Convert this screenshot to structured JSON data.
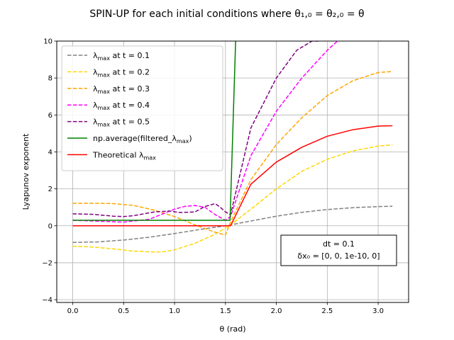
{
  "chart_data": {
    "type": "line",
    "title": "SPIN-UP for each initial conditions where θ₁,₀ = θ₂,₀ = θ",
    "xlabel": "θ (rad)",
    "ylabel": "Lyapunov exponent",
    "xlim": [
      -0.157,
      3.299
    ],
    "ylim": [
      -4.15,
      10
    ],
    "xticks": [
      0.0,
      0.5,
      1.0,
      1.5,
      2.0,
      2.5,
      3.0
    ],
    "xtick_labels": [
      "0.0",
      "0.5",
      "1.0",
      "1.5",
      "2.0",
      "2.5",
      "3.0"
    ],
    "yticks": [
      -4,
      -2,
      0,
      2,
      4,
      6,
      8,
      10
    ],
    "ytick_labels": [
      "−4",
      "−2",
      "0",
      "2",
      "4",
      "6",
      "8",
      "10"
    ],
    "grid": true,
    "legend_position": "upper-left",
    "annotation": {
      "line1": "dt = 0.1",
      "line2": "δx₀ = [0, 0, 1e-10, 0]"
    },
    "series": [
      {
        "name": "λmax at t = 0.1",
        "color": "#808080",
        "dash": "dashed",
        "x": [
          0.0,
          0.25,
          0.5,
          0.75,
          1.0,
          1.25,
          1.5,
          1.75,
          2.0,
          2.25,
          2.5,
          2.75,
          3.0,
          3.14
        ],
        "y": [
          -0.9,
          -0.87,
          -0.77,
          -0.62,
          -0.42,
          -0.2,
          0.0,
          0.26,
          0.52,
          0.73,
          0.88,
          0.98,
          1.04,
          1.06
        ]
      },
      {
        "name": "λmax at t = 0.2",
        "color": "#ffd700",
        "dash": "dashed",
        "x": [
          0.0,
          0.2,
          0.4,
          0.6,
          0.8,
          0.9,
          1.0,
          1.2,
          1.4,
          1.55,
          1.75,
          2.0,
          2.25,
          2.5,
          2.75,
          3.0,
          3.14
        ],
        "y": [
          -1.1,
          -1.15,
          -1.25,
          -1.37,
          -1.42,
          -1.4,
          -1.3,
          -0.95,
          -0.45,
          0.05,
          0.9,
          2.0,
          2.95,
          3.6,
          4.05,
          4.32,
          4.38
        ]
      },
      {
        "name": "λmax at t = 0.3",
        "color": "#ffa500",
        "dash": "dashed",
        "x": [
          0.0,
          0.2,
          0.4,
          0.6,
          0.8,
          1.0,
          1.2,
          1.4,
          1.5,
          1.55,
          1.75,
          2.0,
          2.25,
          2.5,
          2.75,
          3.0,
          3.14
        ],
        "y": [
          1.22,
          1.22,
          1.2,
          1.1,
          0.85,
          0.5,
          0.05,
          -0.35,
          -0.5,
          0.2,
          2.5,
          4.4,
          5.85,
          7.05,
          7.85,
          8.3,
          8.35
        ]
      },
      {
        "name": "λmax at t = 0.4",
        "color": "#ff00ff",
        "dash": "dashed",
        "x": [
          0.0,
          0.25,
          0.5,
          0.75,
          1.0,
          1.1,
          1.2,
          1.3,
          1.4,
          1.5,
          1.55,
          1.75,
          2.0,
          2.25,
          2.5,
          2.6
        ],
        "y": [
          0.3,
          0.25,
          0.2,
          0.35,
          0.9,
          1.05,
          1.1,
          1.0,
          0.6,
          0.3,
          0.5,
          3.8,
          6.2,
          8.0,
          9.5,
          10.0
        ]
      },
      {
        "name": "λmax at t = 0.5",
        "color": "#800080",
        "dash": "dashed",
        "x": [
          0.0,
          0.2,
          0.4,
          0.5,
          0.6,
          0.8,
          0.95,
          1.05,
          1.2,
          1.3,
          1.4,
          1.45,
          1.5,
          1.55,
          1.75,
          2.0,
          2.2,
          2.35,
          2.42
        ],
        "y": [
          0.65,
          0.62,
          0.52,
          0.5,
          0.55,
          0.75,
          0.8,
          0.72,
          0.75,
          1.05,
          1.2,
          1.0,
          0.75,
          0.6,
          5.3,
          8.0,
          9.5,
          10.0,
          10.0
        ]
      },
      {
        "name": "np.average(filtered_λmax)",
        "color": "#008000",
        "dash": "solid",
        "x": [
          0.0,
          1.535,
          1.545,
          1.6
        ],
        "y": [
          0.3,
          0.3,
          0.3,
          10.0
        ]
      },
      {
        "name": "Theoretical λmax",
        "color": "#ff0000",
        "dash": "solid",
        "x": [
          0.0,
          1.5,
          1.55,
          1.75,
          2.0,
          2.25,
          2.5,
          2.75,
          3.0,
          3.14
        ],
        "y": [
          0.0,
          0.0,
          0.0,
          2.25,
          3.45,
          4.25,
          4.85,
          5.2,
          5.4,
          5.42
        ]
      }
    ],
    "legend_labels": [
      {
        "pre": "λ",
        "sub": "max",
        "post": " at t = 0.1"
      },
      {
        "pre": "λ",
        "sub": "max",
        "post": " at t = 0.2"
      },
      {
        "pre": "λ",
        "sub": "max",
        "post": " at t = 0.3"
      },
      {
        "pre": "λ",
        "sub": "max",
        "post": " at t = 0.4"
      },
      {
        "pre": "λ",
        "sub": "max",
        "post": " at t = 0.5"
      },
      {
        "pre": "np.average(filtered_λ",
        "sub": "max",
        "post": ")"
      },
      {
        "pre": "Theoretical λ",
        "sub": "max",
        "post": ""
      }
    ]
  }
}
